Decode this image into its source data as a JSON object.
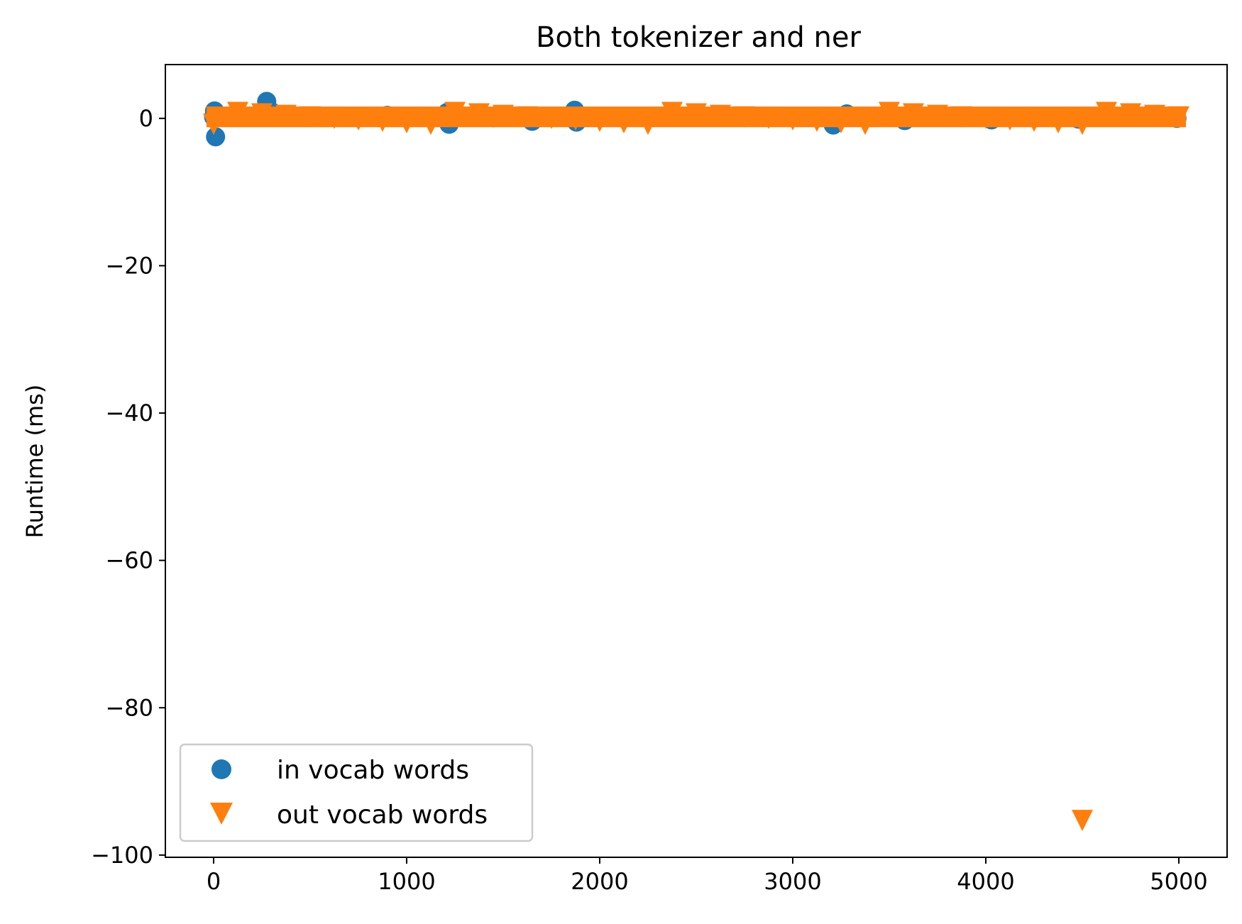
{
  "chart_data": {
    "type": "scatter",
    "title": "Both tokenizer and ner",
    "xlabel": "",
    "ylabel": "Runtime (ms)",
    "xlim": [
      -250,
      5250
    ],
    "ylim": [
      -100.3,
      7.3
    ],
    "x_ticks": [
      0,
      1000,
      2000,
      3000,
      4000,
      5000
    ],
    "x_tick_labels": [
      "0",
      "1000",
      "2000",
      "3000",
      "4000",
      "5000"
    ],
    "y_ticks": [
      0,
      -20,
      -40,
      -60,
      -80,
      -100
    ],
    "y_tick_labels": [
      "0",
      "−20",
      "−40",
      "−60",
      "−80",
      "−100"
    ],
    "grid": false,
    "legend_position": "lower-left",
    "series": [
      {
        "name": "in vocab words",
        "marker": "circle",
        "color": "#1f77b4",
        "x": [
          0,
          5,
          10,
          275,
          300,
          900,
          1210,
          1220,
          1450,
          1650,
          1870,
          1880,
          2700,
          3210,
          3280,
          3580,
          4030,
          4480,
          4990
        ],
        "y": [
          0.2,
          1.0,
          -2.5,
          2.3,
          0.9,
          0.4,
          0.8,
          -0.8,
          0.1,
          -0.4,
          1.1,
          -0.5,
          0.3,
          -0.9,
          0.6,
          -0.3,
          -0.2,
          -0.1,
          0.0
        ]
      },
      {
        "name": "out vocab words",
        "marker": "triangle-down",
        "color": "#ff7f0e",
        "x": [
          4500
        ],
        "y": [
          -95.3
        ],
        "band": {
          "x_start": 0,
          "x_end": 5000,
          "y_min": -1.2,
          "y_max": 1.6
        }
      }
    ]
  }
}
